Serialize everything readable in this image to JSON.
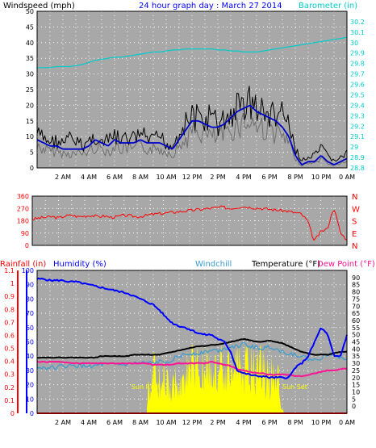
{
  "colors": {
    "background": "#ffffff",
    "plot_bg": "#a8a8a8",
    "grid": "#ffffff",
    "wind": "#000000",
    "wind_avg": "#0000cc",
    "wind_gray": "#6e6e6e",
    "barometer": "#00cccc",
    "direction": "#ff0000",
    "rainfall": "#ff0000",
    "humidity": "#0000ff",
    "windchill": "#3a9bd0",
    "temperature": "#000000",
    "dewpoint": "#ff1493",
    "solar": "#ffff00"
  },
  "chart_data": [
    {
      "type": "line",
      "title": "24 hour graph day : March 27 2014",
      "ylabel": "Windspeed (mph)",
      "y2label": "Barometer (in)",
      "ylim": [
        0,
        50
      ],
      "y2lim": [
        28.8,
        30.3
      ],
      "grid": true,
      "y_ticks": [
        "0",
        "5",
        "10",
        "15",
        "20",
        "25",
        "30",
        "35",
        "40",
        "45",
        "50"
      ],
      "y2_ticks": [
        "28.8",
        "28.9",
        "29",
        "29.1",
        "29.2",
        "29.3",
        "29.4",
        "29.5",
        "29.6",
        "29.7",
        "29.8",
        "29.9",
        "30",
        "30.1",
        "30.2"
      ],
      "x_ticks": [
        "2 AM",
        "4 AM",
        "6 AM",
        "8 AM",
        "10 AM",
        "12 PM",
        "2 PM",
        "4 PM",
        "6 PM",
        "8 PM",
        "10 PM",
        "0 AM"
      ],
      "hours": [
        0,
        0.5,
        1,
        1.5,
        2,
        2.5,
        3,
        3.5,
        4,
        4.5,
        5,
        5.5,
        6,
        6.5,
        7,
        7.5,
        8,
        8.5,
        9,
        9.5,
        10,
        10.5,
        11,
        11.5,
        12,
        12.5,
        13,
        13.5,
        14,
        14.5,
        15,
        15.5,
        16,
        16.5,
        17,
        17.5,
        18,
        18.5,
        19,
        19.5,
        20,
        20.5,
        21,
        21.5,
        22,
        22.5,
        23,
        23.5,
        24
      ],
      "series": [
        {
          "name": "Windspeed (mph)",
          "axis": "left",
          "values": [
            14,
            12,
            11,
            11,
            10,
            12,
            11,
            9,
            11,
            13,
            10,
            11,
            13,
            11,
            12,
            12,
            14,
            12,
            11,
            13,
            10,
            9,
            15,
            18,
            22,
            20,
            19,
            22,
            17,
            20,
            21,
            25,
            26,
            28,
            24,
            23,
            22,
            21,
            24,
            16,
            8,
            3,
            4,
            5,
            8,
            5,
            3,
            4,
            6
          ]
        },
        {
          "name": "Windspeed average",
          "axis": "left",
          "values": [
            9,
            8,
            7,
            7,
            6,
            6,
            6,
            6,
            7,
            9,
            8,
            7,
            9,
            8,
            8,
            8,
            9,
            8,
            8,
            8,
            7,
            6,
            9,
            12,
            15,
            15,
            14,
            13,
            13,
            14,
            16,
            18,
            19,
            20,
            18,
            17,
            16,
            15,
            13,
            10,
            4,
            1,
            2,
            2,
            4,
            2,
            1,
            2,
            3
          ]
        },
        {
          "name": "Barometer (in)",
          "axis": "right",
          "values": [
            29.76,
            29.76,
            29.76,
            29.77,
            29.77,
            29.77,
            29.78,
            29.79,
            29.81,
            29.83,
            29.84,
            29.85,
            29.86,
            29.86,
            29.87,
            29.88,
            29.89,
            29.9,
            29.91,
            29.91,
            29.92,
            29.93,
            29.93,
            29.94,
            29.94,
            29.94,
            29.94,
            29.94,
            29.93,
            29.93,
            29.92,
            29.92,
            29.91,
            29.91,
            29.91,
            29.92,
            29.93,
            29.94,
            29.95,
            29.96,
            29.97,
            29.98,
            29.99,
            30.0,
            30.01,
            30.02,
            30.03,
            30.04,
            30.05
          ]
        }
      ]
    },
    {
      "type": "line",
      "ylabel": "",
      "ylim": [
        0,
        360
      ],
      "y_ticks": [
        "0",
        "90",
        "180",
        "270",
        "360"
      ],
      "y2_ticks": [
        "N",
        "E",
        "S",
        "W",
        "N"
      ],
      "grid": true,
      "hours": [
        0,
        0.5,
        1,
        1.5,
        2,
        2.5,
        3,
        3.5,
        4,
        4.5,
        5,
        5.5,
        6,
        6.5,
        7,
        7.5,
        8,
        8.5,
        9,
        9.5,
        10,
        10.5,
        11,
        11.5,
        12,
        12.5,
        13,
        13.5,
        14,
        14.5,
        15,
        15.5,
        16,
        16.5,
        17,
        17.5,
        18,
        18.5,
        19,
        19.5,
        20,
        20.5,
        21,
        21.5,
        22,
        22.5,
        23,
        23.5,
        24
      ],
      "series": [
        {
          "name": "Wind direction",
          "values": [
            190,
            200,
            205,
            210,
            200,
            215,
            220,
            210,
            215,
            220,
            210,
            215,
            205,
            210,
            220,
            215,
            210,
            215,
            225,
            230,
            235,
            240,
            245,
            250,
            255,
            260,
            265,
            270,
            275,
            280,
            270,
            275,
            285,
            280,
            275,
            270,
            265,
            260,
            255,
            250,
            240,
            230,
            180,
            30,
            100,
            120,
            280,
            90,
            40
          ]
        }
      ]
    },
    {
      "type": "line",
      "ylabels": [
        "Rainfall (in)",
        "Humidity (%)",
        "Windchill",
        "Temperature (°F)",
        "Dew Point (°F)"
      ],
      "ylim": [
        0,
        100
      ],
      "y2lim": [
        -5,
        95
      ],
      "rain_lim": [
        0,
        1.1
      ],
      "grid": true,
      "rain_ticks": [
        "0",
        "0.1",
        "0.2",
        "0.3",
        "0.4",
        "0.5",
        "0.6",
        "0.7",
        "0.8",
        "0.9",
        "1",
        "1.1"
      ],
      "hum_ticks": [
        "0",
        "10",
        "20",
        "30",
        "40",
        "50",
        "60",
        "70",
        "80",
        "90",
        "100"
      ],
      "temp_ticks": [
        "0",
        "5",
        "10",
        "15",
        "20",
        "25",
        "30",
        "35",
        "40",
        "45",
        "50",
        "55",
        "60",
        "65",
        "70",
        "75",
        "80",
        "85",
        "90"
      ],
      "annotations": [
        "Sun Rise",
        "Sun Set"
      ],
      "hours": [
        0,
        0.5,
        1,
        1.5,
        2,
        2.5,
        3,
        3.5,
        4,
        4.5,
        5,
        5.5,
        6,
        6.5,
        7,
        7.5,
        8,
        8.5,
        9,
        9.5,
        10,
        10.5,
        11,
        11.5,
        12,
        12.5,
        13,
        13.5,
        14,
        14.5,
        15,
        15.5,
        16,
        16.5,
        17,
        17.5,
        18,
        18.5,
        19,
        19.5,
        20,
        20.5,
        21,
        21.5,
        22,
        22.5,
        23,
        23.5,
        24
      ],
      "series": [
        {
          "name": "Humidity (%)",
          "axis": "left",
          "values": [
            94,
            94,
            93,
            93,
            93,
            92,
            92,
            91,
            90,
            89,
            88,
            87,
            86,
            85,
            84,
            82,
            80,
            78,
            76,
            72,
            67,
            63,
            61,
            60,
            58,
            56,
            55,
            55,
            52,
            50,
            43,
            30,
            28,
            27,
            26,
            26,
            25,
            25,
            25,
            25,
            32,
            35,
            40,
            50,
            60,
            55,
            40,
            40,
            55
          ]
        },
        {
          "name": "Temperature (°F)",
          "axis": "right",
          "values": [
            34,
            34,
            34,
            34,
            34,
            34,
            34,
            34,
            34,
            34,
            35,
            35,
            35,
            35,
            35,
            36,
            36,
            36,
            36,
            36,
            37,
            38,
            39,
            40,
            41,
            42,
            42,
            43,
            43,
            44,
            45,
            46,
            47,
            46,
            45,
            45,
            46,
            45,
            44,
            42,
            40,
            38,
            37,
            36,
            36,
            36,
            37,
            38,
            38
          ]
        },
        {
          "name": "Windchill",
          "axis": "right",
          "values": [
            27,
            27,
            27,
            27,
            28,
            28,
            28,
            28,
            28,
            28,
            29,
            29,
            29,
            29,
            29,
            30,
            30,
            30,
            30,
            31,
            31,
            33,
            35,
            36,
            37,
            37,
            38,
            39,
            39,
            40,
            42,
            42,
            43,
            42,
            41,
            40,
            42,
            40,
            38,
            37,
            36,
            35,
            33,
            32,
            34,
            36,
            37,
            34,
            33
          ]
        },
        {
          "name": "Dew Point (°F)",
          "axis": "right",
          "values": [
            31,
            31,
            31,
            31,
            31,
            30,
            30,
            30,
            30,
            30,
            30,
            30,
            30,
            30,
            30,
            30,
            30,
            30,
            29,
            29,
            29,
            29,
            30,
            30,
            30,
            30,
            30,
            31,
            30,
            29,
            28,
            26,
            25,
            24,
            23,
            23,
            22,
            22,
            22,
            22,
            21,
            21,
            22,
            23,
            24,
            25,
            25,
            26,
            26
          ]
        },
        {
          "name": "Rainfall (in)",
          "axis": "rain",
          "values": [
            0,
            0,
            0,
            0,
            0,
            0,
            0,
            0,
            0,
            0,
            0,
            0,
            0,
            0,
            0,
            0,
            0,
            0,
            0,
            0,
            0,
            0,
            0,
            0,
            0,
            0,
            0,
            0,
            0,
            0,
            0,
            0,
            0,
            0,
            0,
            0,
            0,
            0,
            0,
            0,
            0,
            0,
            0,
            0,
            0,
            0,
            0,
            0,
            0
          ]
        },
        {
          "name": "Solar",
          "axis": "left",
          "values": [
            0,
            0,
            0,
            0,
            0,
            0,
            0,
            0,
            0,
            0,
            0,
            0,
            0,
            0,
            0,
            0,
            0,
            4,
            28,
            30,
            22,
            26,
            30,
            38,
            35,
            30,
            34,
            42,
            38,
            30,
            36,
            42,
            40,
            45,
            38,
            32,
            28,
            24,
            5,
            0,
            0,
            0,
            0,
            0,
            0,
            0,
            0,
            0,
            0
          ]
        }
      ]
    }
  ]
}
